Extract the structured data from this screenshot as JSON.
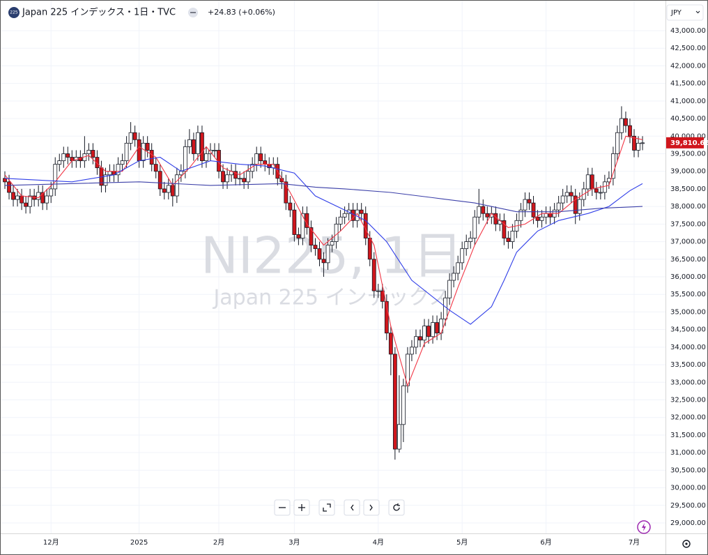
{
  "chart_data": {
    "type": "candlestick",
    "title": "Japan 225 インデックス・1日・TVC",
    "badge": "225",
    "change": "+24.83 (+0.06%)",
    "currency": "JPY",
    "watermark": "NI225, 1日",
    "watermark_subtitle": "Japan 225 インデックス",
    "last_price_label": "39,810.66",
    "up_color": "#ffffff",
    "down_color": "#d0161c",
    "grid": true,
    "ylim": [
      28703,
      43773
    ],
    "yticks": [
      {
        "value": 29000,
        "label": "29,000.00"
      },
      {
        "value": 29500,
        "label": "29,500.00"
      },
      {
        "value": 30000,
        "label": "30,000.00"
      },
      {
        "value": 30500,
        "label": "30,500.00"
      },
      {
        "value": 31000,
        "label": "31,000.00"
      },
      {
        "value": 31500,
        "label": "31,500.00"
      },
      {
        "value": 32000,
        "label": "32,000.00"
      },
      {
        "value": 32500,
        "label": "32,500.00"
      },
      {
        "value": 33000,
        "label": "33,000.00"
      },
      {
        "value": 33500,
        "label": "33,500.00"
      },
      {
        "value": 34000,
        "label": "34,000.00"
      },
      {
        "value": 34500,
        "label": "34,500.00"
      },
      {
        "value": 35000,
        "label": "35,000.00"
      },
      {
        "value": 35500,
        "label": "35,500.00"
      },
      {
        "value": 36000,
        "label": "36,000.00"
      },
      {
        "value": 36500,
        "label": "36,500.00"
      },
      {
        "value": 37000,
        "label": "37,000.00"
      },
      {
        "value": 37500,
        "label": "37,500.00"
      },
      {
        "value": 38000,
        "label": "38,000.00"
      },
      {
        "value": 38500,
        "label": "38,500.00"
      },
      {
        "value": 39000,
        "label": "39,000.00"
      },
      {
        "value": 39500,
        "label": "39,500.00"
      },
      {
        "value": 40000,
        "label": "40,000.00"
      },
      {
        "value": 40500,
        "label": "40,500.00"
      },
      {
        "value": 41000,
        "label": "41,000.00"
      },
      {
        "value": 41500,
        "label": "41,500.00"
      },
      {
        "value": 42000,
        "label": "42,000.00"
      },
      {
        "value": 42500,
        "label": "42,500.00"
      },
      {
        "value": 43000,
        "label": "43,000.00"
      }
    ],
    "categories": [
      null,
      null,
      null,
      null,
      null,
      null,
      null,
      null,
      null,
      null,
      null,
      "12月",
      null,
      null,
      null,
      null,
      null,
      null,
      null,
      null,
      null,
      null,
      null,
      null,
      null,
      null,
      null,
      null,
      null,
      null,
      null,
      null,
      "2025",
      null,
      null,
      null,
      null,
      null,
      null,
      null,
      null,
      null,
      null,
      null,
      null,
      null,
      null,
      null,
      null,
      null,
      null,
      "2月",
      null,
      null,
      null,
      null,
      null,
      null,
      null,
      null,
      null,
      null,
      null,
      null,
      null,
      null,
      null,
      null,
      null,
      "3月",
      null,
      null,
      null,
      null,
      null,
      null,
      null,
      null,
      null,
      null,
      null,
      null,
      null,
      null,
      null,
      null,
      null,
      null,
      null,
      "4月",
      null,
      null,
      null,
      null,
      null,
      null,
      null,
      null,
      null,
      null,
      null,
      null,
      null,
      null,
      null,
      null,
      null,
      null,
      null,
      "5月",
      null,
      null,
      null,
      null,
      null,
      null,
      null,
      null,
      null,
      null,
      null,
      null,
      null,
      null,
      null,
      null,
      null,
      null,
      null,
      "6月",
      null,
      null,
      null,
      null,
      null,
      null,
      null,
      null,
      null,
      null,
      null,
      null,
      null,
      null,
      null,
      null,
      null,
      null,
      null,
      null,
      "7月",
      null,
      null
    ],
    "open": [
      38800,
      38700,
      38400,
      38200,
      38300,
      38100,
      38000,
      38300,
      38200,
      38400,
      38100,
      38300,
      38500,
      39200,
      39300,
      39500,
      39400,
      39300,
      39400,
      39300,
      39500,
      39600,
      39400,
      39100,
      38600,
      38900,
      39000,
      38900,
      39200,
      39300,
      39800,
      40100,
      39900,
      39300,
      39800,
      39600,
      39200,
      39000,
      38500,
      38400,
      38600,
      38300,
      38900,
      39000,
      39700,
      39900,
      39500,
      40100,
      39300,
      39500,
      39600,
      39600,
      39000,
      38700,
      38900,
      39000,
      38800,
      38800,
      38700,
      39000,
      39200,
      39500,
      39300,
      39200,
      39100,
      39200,
      38800,
      38700,
      38100,
      37900,
      37200,
      37100,
      37800,
      37400,
      36900,
      36800,
      36500,
      36400,
      36900,
      37000,
      37500,
      37700,
      37800,
      37900,
      37600,
      37900,
      37800,
      37100,
      36500,
      35600,
      35600,
      35300,
      34400,
      33800,
      31100,
      31800,
      32900,
      33800,
      34000,
      34300,
      34200,
      34600,
      34300,
      34700,
      34400,
      34800,
      35400,
      35900,
      36100,
      36400,
      36800,
      37000,
      37100,
      37700,
      38000,
      37800,
      37700,
      37800,
      37500,
      37600,
      37100,
      37000,
      37300,
      37600,
      37900,
      38200,
      38100,
      37700,
      37600,
      37700,
      37800,
      37700,
      37900,
      38100,
      38300,
      38400,
      38300,
      37800,
      38200,
      38500,
      38900,
      38500,
      38400,
      38400,
      38700,
      38800,
      39500,
      40100,
      40500,
      40300,
      40000,
      39600,
      39800
    ],
    "high": [
      39000,
      38900,
      38600,
      38500,
      38500,
      38300,
      38500,
      38500,
      38600,
      38600,
      38500,
      38700,
      39400,
      39500,
      39700,
      39700,
      39600,
      39600,
      39600,
      40000,
      39800,
      39800,
      39600,
      39300,
      39100,
      39200,
      39200,
      39400,
      39500,
      40000,
      40400,
      40300,
      40100,
      40000,
      40000,
      39800,
      39400,
      39200,
      38700,
      38800,
      38800,
      39100,
      39200,
      39900,
      40200,
      40100,
      40300,
      40300,
      39700,
      39800,
      39800,
      39800,
      39200,
      39100,
      39200,
      39200,
      39000,
      39000,
      39200,
      39400,
      39700,
      39700,
      39500,
      39400,
      39400,
      39400,
      39000,
      38900,
      38300,
      38100,
      37400,
      38000,
      38000,
      37600,
      37100,
      37000,
      36700,
      37100,
      37200,
      37700,
      37900,
      38000,
      38100,
      38100,
      38100,
      38100,
      38000,
      37300,
      36700,
      35800,
      35800,
      35500,
      34600,
      34000,
      33200,
      33100,
      34000,
      34200,
      34500,
      34500,
      34800,
      34800,
      34900,
      34900,
      35000,
      35600,
      36100,
      36300,
      36600,
      37000,
      37200,
      37300,
      37900,
      38500,
      38200,
      38000,
      38000,
      38000,
      37800,
      37800,
      37300,
      37500,
      37800,
      38100,
      38400,
      38400,
      38300,
      37900,
      37900,
      38000,
      38000,
      38100,
      38300,
      38500,
      38600,
      38600,
      38500,
      38400,
      38700,
      39100,
      39100,
      38700,
      38600,
      38900,
      39000,
      39700,
      40300,
      40850,
      40700,
      40500,
      40200,
      40000,
      40000
    ],
    "low": [
      38500,
      38200,
      38000,
      38000,
      37900,
      37800,
      37800,
      38000,
      38000,
      37900,
      37900,
      38100,
      38300,
      39000,
      39100,
      39200,
      39100,
      39100,
      39100,
      39100,
      39300,
      39200,
      38900,
      38400,
      38400,
      38700,
      38700,
      38700,
      39000,
      39100,
      39600,
      39700,
      39100,
      39100,
      39400,
      39000,
      38800,
      38300,
      38200,
      38200,
      38000,
      38100,
      38700,
      38800,
      39500,
      39300,
      39300,
      39100,
      39100,
      39300,
      39400,
      38800,
      38500,
      38500,
      38700,
      38600,
      38600,
      38500,
      38500,
      38800,
      39000,
      39100,
      39000,
      38900,
      38900,
      38600,
      38500,
      37900,
      37700,
      37000,
      36900,
      36900,
      37200,
      36700,
      36600,
      36300,
      36000,
      36200,
      36700,
      36800,
      37300,
      37500,
      37600,
      37400,
      37400,
      37600,
      36900,
      36300,
      35400,
      35400,
      35100,
      34200,
      33200,
      30800,
      31000,
      31300,
      32700,
      33600,
      33800,
      34000,
      34000,
      34100,
      34100,
      34200,
      34200,
      34600,
      35200,
      35700,
      35900,
      36200,
      36600,
      36800,
      36900,
      37500,
      37600,
      37500,
      37500,
      37300,
      37300,
      36900,
      36800,
      36800,
      37100,
      37400,
      37700,
      37900,
      37500,
      37400,
      37400,
      37500,
      37500,
      37500,
      37700,
      37900,
      38100,
      38100,
      37500,
      37600,
      38000,
      38300,
      38300,
      38200,
      38200,
      38200,
      38500,
      38600,
      39300,
      39900,
      40100,
      39800,
      39400,
      39400,
      39600
    ],
    "close": [
      38700,
      38400,
      38200,
      38300,
      38100,
      38000,
      38300,
      38200,
      38400,
      38100,
      38300,
      38500,
      39200,
      39300,
      39500,
      39400,
      39300,
      39400,
      39300,
      39500,
      39600,
      39400,
      39100,
      38600,
      38900,
      39000,
      38900,
      39200,
      39300,
      39800,
      40100,
      39900,
      39300,
      39800,
      39600,
      39200,
      39000,
      38500,
      38400,
      38600,
      38300,
      38900,
      39000,
      39700,
      39900,
      39500,
      40100,
      39300,
      39500,
      39600,
      39600,
      39000,
      38700,
      38900,
      39000,
      38800,
      38800,
      38700,
      39000,
      39200,
      39500,
      39300,
      39200,
      39100,
      39200,
      38800,
      38700,
      38100,
      37900,
      37200,
      37100,
      37800,
      37400,
      36900,
      36800,
      36500,
      36400,
      36900,
      37000,
      37500,
      37700,
      37800,
      37900,
      37600,
      37900,
      37800,
      37100,
      36500,
      35600,
      35600,
      35300,
      34400,
      33800,
      31100,
      31800,
      32900,
      33800,
      34000,
      34300,
      34200,
      34600,
      34300,
      34700,
      34400,
      34800,
      35400,
      35900,
      36100,
      36400,
      36800,
      37000,
      37100,
      37700,
      38000,
      37800,
      37700,
      37800,
      37500,
      37600,
      37100,
      37000,
      37300,
      37600,
      37900,
      38200,
      38100,
      37700,
      37600,
      37700,
      37800,
      37700,
      37900,
      38100,
      38300,
      38400,
      38300,
      37800,
      38200,
      38500,
      38900,
      38500,
      38400,
      38400,
      38700,
      38800,
      39500,
      40100,
      40500,
      40300,
      40000,
      39600,
      39800,
      39810.66
    ],
    "lines": [
      {
        "color": "#f23645",
        "x": [
          0,
          4,
          8,
          12,
          16,
          20,
          24,
          28,
          32,
          36,
          40,
          44,
          48,
          52,
          56,
          60,
          64,
          68,
          72,
          76,
          80,
          84,
          88,
          92,
          96,
          100,
          104,
          108,
          112,
          116,
          120,
          124,
          128,
          132,
          136,
          140,
          144,
          148,
          152
        ],
        "values": [
          38900,
          38300,
          38250,
          38700,
          39300,
          39450,
          39000,
          39000,
          39700,
          39400,
          38600,
          39100,
          39700,
          39100,
          38900,
          39200,
          39200,
          38400,
          37500,
          36900,
          37300,
          37800,
          36900,
          34600,
          32900,
          34100,
          34400,
          35700,
          36900,
          37800,
          37400,
          37500,
          37800,
          37800,
          38200,
          38500,
          38600,
          40000,
          39900
        ]
      },
      {
        "color": "#2f3ee8",
        "x": [
          0,
          16,
          26,
          32,
          37,
          42,
          49,
          56,
          62,
          69,
          74,
          81,
          86,
          91,
          97,
          106,
          111,
          116,
          119,
          122,
          127,
          132,
          139,
          144,
          149,
          152
        ],
        "values": [
          38800,
          38700,
          38900,
          39300,
          39400,
          39000,
          39300,
          39200,
          39150,
          38950,
          38300,
          37900,
          37600,
          37000,
          35900,
          35050,
          34650,
          35150,
          35900,
          36700,
          37300,
          37600,
          37800,
          38000,
          38450,
          38650
        ]
      },
      {
        "color": "#3b3fa8",
        "x": [
          0,
          32,
          49,
          66,
          74,
          81,
          92,
          102,
          112,
          122,
          132,
          142,
          152
        ],
        "values": [
          38600,
          38700,
          38600,
          38650,
          38550,
          38500,
          38400,
          38250,
          38100,
          37850,
          37850,
          37950,
          38000
        ]
      }
    ]
  }
}
